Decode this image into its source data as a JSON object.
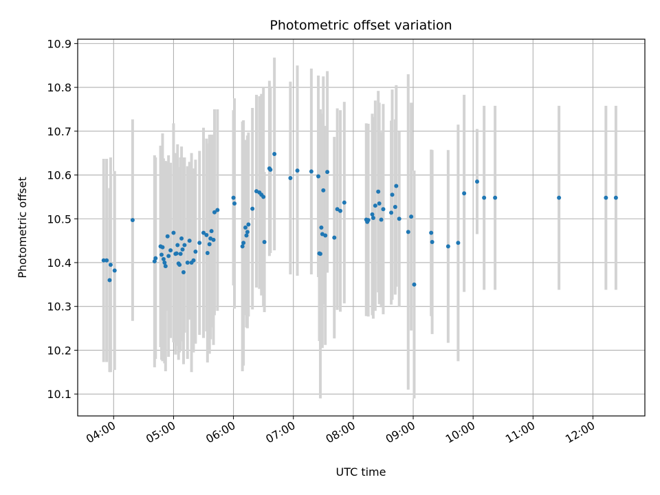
{
  "chart_data": {
    "type": "scatter",
    "title": "Photometric offset variation",
    "xlabel": "UTC time",
    "ylabel": "Photometric offset",
    "x_unit": "UTC time (HH:MM)",
    "xlim": [
      "03:24",
      "12:52"
    ],
    "ylim": [
      10.05,
      10.91
    ],
    "x_ticks": [
      "04:00",
      "05:00",
      "06:00",
      "07:00",
      "08:00",
      "09:00",
      "10:00",
      "11:00",
      "12:00"
    ],
    "y_ticks": [
      10.1,
      10.2,
      10.3,
      10.4,
      10.5,
      10.6,
      10.7,
      10.8,
      10.9
    ],
    "grid": true,
    "colors": {
      "point": "#1f77b4",
      "errorbar": "#d3d3d3",
      "grid": "#b0b0b0"
    },
    "series": [
      {
        "points": [
          {
            "t": "03:50",
            "y": 10.405,
            "err": 0.232
          },
          {
            "t": "03:53",
            "y": 10.405,
            "err": 0.232
          },
          {
            "t": "03:56",
            "y": 10.36,
            "err": 0.21
          },
          {
            "t": "03:57",
            "y": 10.395,
            "err": 0.245
          },
          {
            "t": "04:01",
            "y": 10.382,
            "err": 0.227
          },
          {
            "t": "04:19",
            "y": 10.497,
            "err": 0.23
          },
          {
            "t": "04:41",
            "y": 10.403,
            "err": 0.242
          },
          {
            "t": "04:42",
            "y": 10.41,
            "err": 0.23
          },
          {
            "t": "04:47",
            "y": 10.437,
            "err": 0.23
          },
          {
            "t": "04:48",
            "y": 10.418,
            "err": 0.24
          },
          {
            "t": "04:49",
            "y": 10.435,
            "err": 0.26
          },
          {
            "t": "04:50",
            "y": 10.408,
            "err": 0.23
          },
          {
            "t": "04:51",
            "y": 10.4,
            "err": 0.23
          },
          {
            "t": "04:52",
            "y": 10.392,
            "err": 0.24
          },
          {
            "t": "04:54",
            "y": 10.46,
            "err": 0.17
          },
          {
            "t": "04:55",
            "y": 10.415,
            "err": 0.23
          },
          {
            "t": "04:57",
            "y": 10.428,
            "err": 0.2
          },
          {
            "t": "05:00",
            "y": 10.468,
            "err": 0.25
          },
          {
            "t": "05:02",
            "y": 10.42,
            "err": 0.23
          },
          {
            "t": "05:03",
            "y": 10.421,
            "err": 0.2
          },
          {
            "t": "05:04",
            "y": 10.44,
            "err": 0.23
          },
          {
            "t": "05:05",
            "y": 10.398,
            "err": 0.22
          },
          {
            "t": "05:06",
            "y": 10.395,
            "err": 0.2
          },
          {
            "t": "05:07",
            "y": 10.42,
            "err": 0.22
          },
          {
            "t": "05:08",
            "y": 10.455,
            "err": 0.21
          },
          {
            "t": "05:09",
            "y": 10.43,
            "err": 0.21
          },
          {
            "t": "05:10",
            "y": 10.378,
            "err": 0.21
          },
          {
            "t": "05:11",
            "y": 10.44,
            "err": 0.2
          },
          {
            "t": "05:14",
            "y": 10.4,
            "err": 0.22
          },
          {
            "t": "05:16",
            "y": 10.45,
            "err": 0.18
          },
          {
            "t": "05:18",
            "y": 10.4,
            "err": 0.25
          },
          {
            "t": "05:20",
            "y": 10.405,
            "err": 0.21
          },
          {
            "t": "05:22",
            "y": 10.425,
            "err": 0.21
          },
          {
            "t": "05:26",
            "y": 10.445,
            "err": 0.21
          },
          {
            "t": "05:30",
            "y": 10.468,
            "err": 0.24
          },
          {
            "t": "05:33",
            "y": 10.463,
            "err": 0.22
          },
          {
            "t": "05:34",
            "y": 10.422,
            "err": 0.25
          },
          {
            "t": "05:36",
            "y": 10.442,
            "err": 0.25
          },
          {
            "t": "05:37",
            "y": 10.455,
            "err": 0.23
          },
          {
            "t": "05:38",
            "y": 10.472,
            "err": 0.22
          },
          {
            "t": "05:40",
            "y": 10.452,
            "err": 0.24
          },
          {
            "t": "05:41",
            "y": 10.515,
            "err": 0.235
          },
          {
            "t": "05:44",
            "y": 10.52,
            "err": 0.23
          },
          {
            "t": "06:00",
            "y": 10.548,
            "err": 0.2
          },
          {
            "t": "06:01",
            "y": 10.535,
            "err": 0.24
          },
          {
            "t": "06:09",
            "y": 10.437,
            "err": 0.285
          },
          {
            "t": "06:10",
            "y": 10.445,
            "err": 0.28
          },
          {
            "t": "06:12",
            "y": 10.48,
            "err": 0.2
          },
          {
            "t": "06:13",
            "y": 10.462,
            "err": 0.21
          },
          {
            "t": "06:14",
            "y": 10.47,
            "err": 0.22
          },
          {
            "t": "06:15",
            "y": 10.487,
            "err": 0.21
          },
          {
            "t": "06:19",
            "y": 10.523,
            "err": 0.23
          },
          {
            "t": "06:23",
            "y": 10.563,
            "err": 0.22
          },
          {
            "t": "06:26",
            "y": 10.56,
            "err": 0.22
          },
          {
            "t": "06:28",
            "y": 10.555,
            "err": 0.23
          },
          {
            "t": "06:30",
            "y": 10.55,
            "err": 0.25
          },
          {
            "t": "06:31",
            "y": 10.447,
            "err": 0.16
          },
          {
            "t": "06:36",
            "y": 10.615,
            "err": 0.2
          },
          {
            "t": "06:37",
            "y": 10.612,
            "err": 0.19
          },
          {
            "t": "06:41",
            "y": 10.648,
            "err": 0.22
          },
          {
            "t": "06:57",
            "y": 10.593,
            "err": 0.22
          },
          {
            "t": "07:04",
            "y": 10.61,
            "err": 0.24
          },
          {
            "t": "07:18",
            "y": 10.608,
            "err": 0.235
          },
          {
            "t": "07:25",
            "y": 10.597,
            "err": 0.23
          },
          {
            "t": "07:26",
            "y": 10.421,
            "err": 0.2
          },
          {
            "t": "07:27",
            "y": 10.42,
            "err": 0.33
          },
          {
            "t": "07:28",
            "y": 10.48,
            "err": 0.26
          },
          {
            "t": "07:29",
            "y": 10.465,
            "err": 0.26
          },
          {
            "t": "07:30",
            "y": 10.565,
            "err": 0.26
          },
          {
            "t": "07:32",
            "y": 10.462,
            "err": 0.25
          },
          {
            "t": "07:34",
            "y": 10.607,
            "err": 0.23
          },
          {
            "t": "07:41",
            "y": 10.457,
            "err": 0.23
          },
          {
            "t": "07:44",
            "y": 10.522,
            "err": 0.23
          },
          {
            "t": "07:47",
            "y": 10.518,
            "err": 0.23
          },
          {
            "t": "07:51",
            "y": 10.537,
            "err": 0.23
          },
          {
            "t": "08:13",
            "y": 10.498,
            "err": 0.22
          },
          {
            "t": "08:14",
            "y": 10.493,
            "err": 0.21
          },
          {
            "t": "08:15",
            "y": 10.497,
            "err": 0.22
          },
          {
            "t": "08:19",
            "y": 10.51,
            "err": 0.23
          },
          {
            "t": "08:20",
            "y": 10.502,
            "err": 0.23
          },
          {
            "t": "08:22",
            "y": 10.53,
            "err": 0.24
          },
          {
            "t": "08:25",
            "y": 10.562,
            "err": 0.23
          },
          {
            "t": "08:26",
            "y": 10.535,
            "err": 0.23
          },
          {
            "t": "08:28",
            "y": 10.498,
            "err": 0.2
          },
          {
            "t": "08:30",
            "y": 10.522,
            "err": 0.24
          },
          {
            "t": "08:38",
            "y": 10.514,
            "err": 0.21
          },
          {
            "t": "08:39",
            "y": 10.555,
            "err": 0.24
          },
          {
            "t": "08:42",
            "y": 10.527,
            "err": 0.2
          },
          {
            "t": "08:43",
            "y": 10.575,
            "err": 0.23
          },
          {
            "t": "08:46",
            "y": 10.5,
            "err": 0.2
          },
          {
            "t": "08:55",
            "y": 10.47,
            "err": 0.36
          },
          {
            "t": "08:58",
            "y": 10.505,
            "err": 0.26
          },
          {
            "t": "09:01",
            "y": 10.35,
            "err": 0.26
          },
          {
            "t": "09:18",
            "y": 10.468,
            "err": 0.19
          },
          {
            "t": "09:19",
            "y": 10.447,
            "err": 0.21
          },
          {
            "t": "09:35",
            "y": 10.437,
            "err": 0.22
          },
          {
            "t": "09:45",
            "y": 10.445,
            "err": 0.27
          },
          {
            "t": "09:51",
            "y": 10.558,
            "err": 0.225
          },
          {
            "t": "10:04",
            "y": 10.585,
            "err": 0.12
          },
          {
            "t": "10:11",
            "y": 10.548,
            "err": 0.21
          },
          {
            "t": "10:22",
            "y": 10.548,
            "err": 0.21
          },
          {
            "t": "11:26",
            "y": 10.548,
            "err": 0.21
          },
          {
            "t": "12:13",
            "y": 10.548,
            "err": 0.21
          },
          {
            "t": "12:23",
            "y": 10.548,
            "err": 0.21
          }
        ]
      }
    ]
  }
}
